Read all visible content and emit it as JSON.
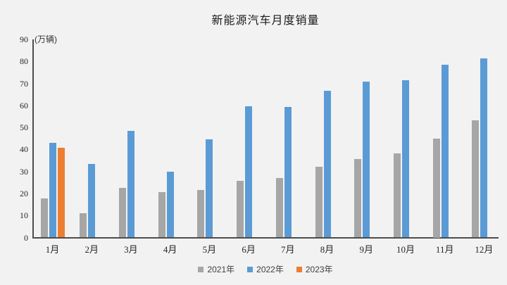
{
  "chart_data": {
    "type": "bar",
    "title": "新能源汽车月度销量",
    "unit_label": "(万辆)",
    "xlabel": "",
    "ylabel": "万辆",
    "ylim": [
      0,
      90
    ],
    "yticks": [
      0,
      10,
      20,
      30,
      40,
      50,
      60,
      70,
      80,
      90
    ],
    "grid": false,
    "legend_position": "bottom",
    "categories": [
      "1月",
      "2月",
      "3月",
      "4月",
      "5月",
      "6月",
      "7月",
      "8月",
      "9月",
      "10月",
      "11月",
      "12月"
    ],
    "series": [
      {
        "name": "2021年",
        "color": "#a6a6a6",
        "values": [
          17.9,
          11.0,
          22.6,
          20.6,
          21.7,
          25.6,
          27.1,
          32.1,
          35.7,
          38.3,
          45.0,
          53.1
        ]
      },
      {
        "name": "2022年",
        "color": "#5b9bd5",
        "values": [
          43.1,
          33.4,
          48.4,
          29.9,
          44.7,
          59.6,
          59.3,
          66.6,
          70.8,
          71.4,
          78.6,
          81.4
        ]
      },
      {
        "name": "2023年",
        "color": "#ed7d31",
        "values": [
          40.8,
          null,
          null,
          null,
          null,
          null,
          null,
          null,
          null,
          null,
          null,
          null
        ]
      }
    ]
  }
}
